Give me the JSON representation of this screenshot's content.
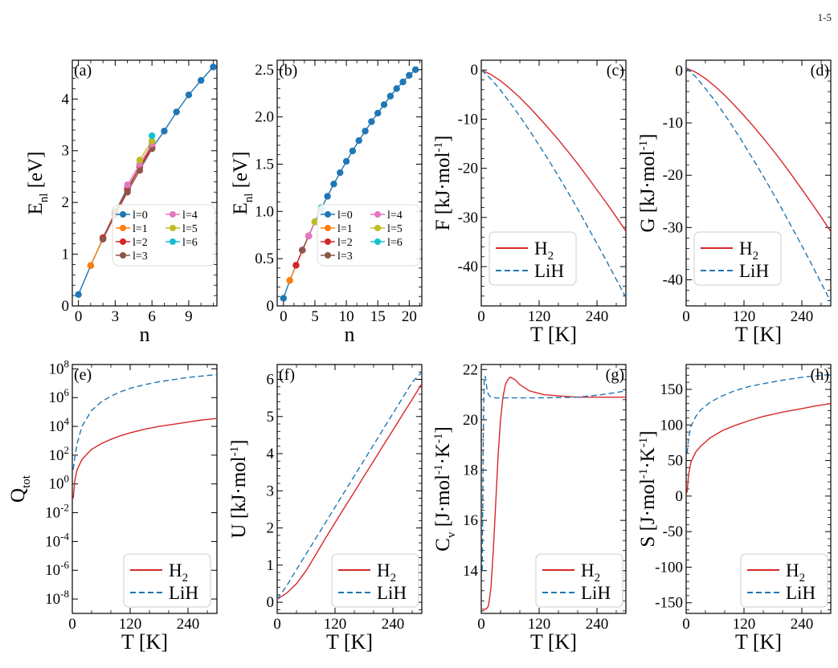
{
  "page_number": "1-5",
  "colors": {
    "H2": "#d62728",
    "LiH": "#1f77b4",
    "l0": "#1f77b4",
    "l1": "#ff7f0e",
    "l2": "#d62728",
    "l3": "#8c564b",
    "l4": "#e377c2",
    "l5": "#bcbd22",
    "l6": "#17becf"
  },
  "chart_data": [
    {
      "id": "a",
      "panel_label": "(a)",
      "type": "line",
      "xlabel": "n",
      "ylabel_main": "E",
      "ylabel_sub": "nl",
      "ylabel_unit": " [eV]",
      "xlim": [
        -0.5,
        11.3
      ],
      "ylim": [
        0,
        4.75
      ],
      "xticks": [
        0,
        3,
        6,
        9
      ],
      "yticks": [
        0,
        1,
        2,
        3,
        4
      ],
      "legend": {
        "position": "lower-right-inside",
        "columns": 2,
        "entries": [
          "l=0",
          "l=1",
          "l=2",
          "l=3",
          "l=4",
          "l=5",
          "l=6"
        ]
      },
      "series": [
        {
          "name": "l=0",
          "x": [
            0,
            1,
            2,
            3,
            4,
            5,
            6,
            7,
            8,
            9,
            10,
            11
          ],
          "y": [
            0.22,
            0.78,
            1.3,
            1.82,
            2.28,
            2.68,
            3.05,
            3.38,
            3.75,
            4.08,
            4.36,
            4.62
          ]
        },
        {
          "name": "l=1",
          "x": [
            1,
            2,
            3,
            4,
            5,
            6
          ],
          "y": [
            0.78,
            1.31,
            1.8,
            2.25,
            2.68,
            3.12
          ]
        },
        {
          "name": "l=2",
          "x": [
            2,
            3,
            4,
            5,
            6
          ],
          "y": [
            1.32,
            1.79,
            2.24,
            2.69,
            3.08
          ]
        },
        {
          "name": "l=3",
          "x": [
            2,
            3,
            4,
            5,
            6
          ],
          "y": [
            1.29,
            1.76,
            2.2,
            2.62,
            3.04
          ]
        },
        {
          "name": "l=4",
          "x": [
            4,
            5,
            6
          ],
          "y": [
            2.34,
            2.74,
            3.13
          ]
        },
        {
          "name": "l=5",
          "x": [
            5,
            6
          ],
          "y": [
            2.82,
            3.19
          ]
        },
        {
          "name": "l=6",
          "x": [
            6
          ],
          "y": [
            3.29
          ]
        }
      ]
    },
    {
      "id": "b",
      "panel_label": "(b)",
      "type": "line",
      "xlabel": "n",
      "ylabel_main": "E",
      "ylabel_sub": "nl",
      "ylabel_unit": " [eV]",
      "xlim": [
        -1,
        22
      ],
      "ylim": [
        0,
        2.6
      ],
      "xticks": [
        0,
        5,
        10,
        15,
        20
      ],
      "yticks": [
        0,
        0.5,
        1.0,
        1.5,
        2.0,
        2.5
      ],
      "ytick_labels": [
        "0",
        "0.5",
        "1.0",
        "1.5",
        "2.0",
        "2.5"
      ],
      "legend": {
        "position": "lower-right-inside",
        "columns": 2,
        "entries": [
          "l=0",
          "l=1",
          "l=2",
          "l=3",
          "l=4",
          "l=5",
          "l=6"
        ]
      },
      "series": [
        {
          "name": "l=0",
          "x": [
            0,
            1,
            2,
            3,
            4,
            5,
            6,
            7,
            8,
            9,
            10,
            11,
            12,
            13,
            14,
            15,
            16,
            17,
            18,
            19,
            20,
            21
          ],
          "y": [
            0.08,
            0.27,
            0.43,
            0.59,
            0.74,
            0.89,
            1.03,
            1.16,
            1.29,
            1.41,
            1.53,
            1.64,
            1.75,
            1.85,
            1.95,
            2.04,
            2.13,
            2.22,
            2.3,
            2.37,
            2.44,
            2.5
          ]
        },
        {
          "name": "l=1",
          "x": [
            1,
            2,
            3,
            4,
            5
          ],
          "y": [
            0.27,
            0.43,
            0.59,
            0.74,
            0.89
          ]
        },
        {
          "name": "l=2",
          "x": [
            2,
            3,
            4,
            5
          ],
          "y": [
            0.43,
            0.59,
            0.74,
            0.89
          ]
        },
        {
          "name": "l=3",
          "x": [
            3,
            4,
            5
          ],
          "y": [
            0.59,
            0.74,
            0.89
          ]
        },
        {
          "name": "l=4",
          "x": [
            4,
            5
          ],
          "y": [
            0.74,
            0.89
          ]
        },
        {
          "name": "l=5",
          "x": [
            5
          ],
          "y": [
            0.89
          ]
        },
        {
          "name": "l=6",
          "x": [
            6
          ],
          "y": [
            1.04
          ]
        }
      ]
    },
    {
      "id": "c",
      "panel_label": "(c)",
      "type": "line",
      "xlabel": "T [K]",
      "ylabel_text": "F [kJ·mol",
      "ylabel_sup": "-1",
      "ylabel_end": "]",
      "xlim": [
        0,
        300
      ],
      "ylim": [
        -48,
        2
      ],
      "xticks": [
        0,
        120,
        240
      ],
      "yticks": [
        0,
        -10,
        -20,
        -30,
        -40
      ],
      "legend": {
        "position": "lower-left-inside",
        "entries": [
          "H2",
          "LiH"
        ]
      },
      "x": [
        0,
        20,
        40,
        60,
        80,
        100,
        120,
        140,
        160,
        180,
        200,
        220,
        240,
        260,
        280,
        300
      ],
      "series": [
        {
          "name": "H2",
          "style": "solid",
          "y": [
            0,
            -0.9,
            -2.2,
            -3.8,
            -5.6,
            -7.6,
            -9.7,
            -11.9,
            -14.2,
            -16.6,
            -19.1,
            -21.7,
            -24.4,
            -27.1,
            -29.9,
            -32.8
          ]
        },
        {
          "name": "LiH",
          "style": "dashed",
          "y": [
            0,
            -1.8,
            -4.1,
            -6.7,
            -9.4,
            -12.3,
            -15.3,
            -18.4,
            -21.6,
            -24.9,
            -28.3,
            -31.8,
            -35.3,
            -38.9,
            -42.6,
            -46.3
          ]
        }
      ]
    },
    {
      "id": "d",
      "panel_label": "(d)",
      "type": "line",
      "xlabel": "T [K]",
      "ylabel_text": "G [kJ·mol",
      "ylabel_sup": "-1",
      "ylabel_end": "]",
      "xlim": [
        0,
        300
      ],
      "ylim": [
        -45,
        2
      ],
      "xticks": [
        0,
        120,
        240
      ],
      "yticks": [
        0,
        -10,
        -20,
        -30,
        -40
      ],
      "legend": {
        "position": "lower-left-inside",
        "entries": [
          "H2",
          "LiH"
        ]
      },
      "x": [
        0,
        20,
        40,
        60,
        80,
        100,
        120,
        140,
        160,
        180,
        200,
        220,
        240,
        260,
        280,
        300
      ],
      "series": [
        {
          "name": "H2",
          "style": "solid",
          "y": [
            0.5,
            -0.3,
            -1.5,
            -3.0,
            -4.7,
            -6.6,
            -8.6,
            -10.7,
            -12.9,
            -15.2,
            -17.6,
            -20.1,
            -22.7,
            -25.3,
            -28.0,
            -30.8
          ]
        },
        {
          "name": "LiH",
          "style": "dashed",
          "y": [
            0.5,
            -1.2,
            -3.4,
            -5.8,
            -8.4,
            -11.2,
            -14.1,
            -17.1,
            -20.2,
            -23.4,
            -26.7,
            -30.1,
            -33.5,
            -37.0,
            -40.6,
            -44.2
          ]
        }
      ]
    },
    {
      "id": "e",
      "panel_label": "(e)",
      "type": "line",
      "yscale": "log",
      "xlabel": "T [K]",
      "ylabel_main": "Q",
      "ylabel_sub": "tot",
      "xlim": [
        0,
        300
      ],
      "ylim_exp": [
        -9,
        8.3
      ],
      "xticks": [
        0,
        120,
        240
      ],
      "yticks_exp": [
        -8,
        -6,
        -4,
        -2,
        0,
        2,
        4,
        6,
        8
      ],
      "legend": {
        "position": "lower-right-inside",
        "entries": [
          "H2",
          "LiH"
        ]
      },
      "x": [
        2,
        5,
        10,
        20,
        40,
        60,
        80,
        100,
        120,
        150,
        180,
        210,
        240,
        270,
        300
      ],
      "series": [
        {
          "name": "H2",
          "style": "solid",
          "log10_y": [
            -1.0,
            0.2,
            1.0,
            1.7,
            2.4,
            2.8,
            3.1,
            3.35,
            3.55,
            3.8,
            4.0,
            4.15,
            4.3,
            4.45,
            4.55
          ]
        },
        {
          "name": "LiH",
          "style": "dashed",
          "log10_y": [
            1.0,
            1.8,
            2.8,
            4.0,
            5.1,
            5.7,
            6.1,
            6.4,
            6.65,
            6.9,
            7.1,
            7.25,
            7.4,
            7.5,
            7.6
          ]
        }
      ]
    },
    {
      "id": "f",
      "panel_label": "(f)",
      "type": "line",
      "xlabel": "T [K]",
      "ylabel_text": "U [kJ·mol",
      "ylabel_sup": "-1",
      "ylabel_end": "]",
      "xlim": [
        0,
        300
      ],
      "ylim": [
        -0.3,
        6.4
      ],
      "xticks": [
        0,
        120,
        240
      ],
      "yticks": [
        0,
        1,
        2,
        3,
        4,
        5,
        6
      ],
      "legend": {
        "position": "lower-right-inside",
        "entries": [
          "H2",
          "LiH"
        ]
      },
      "x": [
        0,
        20,
        40,
        60,
        80,
        100,
        120,
        140,
        160,
        180,
        200,
        220,
        240,
        260,
        280,
        300
      ],
      "series": [
        {
          "name": "H2",
          "style": "solid",
          "y": [
            0.08,
            0.25,
            0.5,
            0.85,
            1.28,
            1.72,
            2.14,
            2.56,
            2.97,
            3.39,
            3.8,
            4.22,
            4.63,
            5.05,
            5.46,
            5.88
          ]
        },
        {
          "name": "LiH",
          "style": "dashed",
          "y": [
            0.08,
            0.45,
            0.88,
            1.3,
            1.72,
            2.14,
            2.56,
            2.98,
            3.4,
            3.82,
            4.24,
            4.66,
            5.08,
            5.5,
            5.92,
            6.2
          ]
        }
      ]
    },
    {
      "id": "g",
      "panel_label": "(g)",
      "type": "line",
      "xlabel": "T [K]",
      "ylabel_main": "C",
      "ylabel_sub": "v",
      "ylabel_text": " [J·mol",
      "ylabel_sup": "-1",
      "ylabel_mid": "·K",
      "ylabel_sup2": "-1",
      "ylabel_end": "]",
      "xlim": [
        0,
        300
      ],
      "ylim": [
        12.3,
        22.2
      ],
      "xticks": [
        0,
        120,
        240
      ],
      "yticks": [
        14,
        16,
        18,
        20,
        22
      ],
      "legend": {
        "position": "lower-right-inside",
        "entries": [
          "H2",
          "LiH"
        ]
      },
      "series": [
        {
          "name": "H2",
          "style": "solid",
          "x": [
            2,
            5,
            10,
            15,
            20,
            25,
            30,
            35,
            40,
            45,
            50,
            55,
            60,
            70,
            80,
            100,
            130,
            160,
            200,
            240,
            280,
            300
          ],
          "y": [
            12.47,
            12.47,
            12.47,
            12.6,
            13.3,
            14.8,
            16.7,
            18.6,
            20.0,
            20.9,
            21.4,
            21.6,
            21.7,
            21.6,
            21.4,
            21.15,
            21.0,
            20.95,
            20.9,
            20.9,
            20.9,
            20.9
          ]
        },
        {
          "name": "LiH",
          "style": "dashed",
          "x": [
            2,
            4,
            6,
            8,
            10,
            12,
            15,
            20,
            30,
            50,
            100,
            150,
            200,
            250,
            300
          ],
          "y": [
            14.0,
            19.0,
            21.5,
            21.75,
            21.5,
            21.2,
            21.0,
            20.9,
            20.87,
            20.87,
            20.87,
            20.88,
            20.9,
            21.0,
            21.15
          ]
        }
      ]
    },
    {
      "id": "h",
      "panel_label": "(h)",
      "type": "line",
      "xlabel": "T [K]",
      "ylabel_text": "S [J·mol",
      "ylabel_sup": "-1",
      "ylabel_mid": "·K",
      "ylabel_sup2": "-1",
      "ylabel_end": "]",
      "xlim": [
        0,
        300
      ],
      "ylim": [
        -165,
        185
      ],
      "xticks": [
        0,
        120,
        240
      ],
      "yticks": [
        150,
        100,
        50,
        0,
        -50,
        -100,
        -150
      ],
      "legend": {
        "position": "lower-right-inside",
        "entries": [
          "H2",
          "LiH"
        ]
      },
      "x": [
        2,
        5,
        10,
        20,
        30,
        50,
        75,
        100,
        130,
        160,
        200,
        240,
        270,
        300
      ],
      "series": [
        {
          "name": "H2",
          "style": "solid",
          "y": [
            5,
            30,
            48,
            62,
            70,
            82,
            92,
            99,
            106,
            112,
            118,
            123,
            127,
            130
          ]
        },
        {
          "name": "LiH",
          "style": "dashed",
          "y": [
            60,
            82,
            98,
            112,
            121,
            132,
            141,
            148,
            154,
            158,
            163,
            167,
            169,
            171
          ]
        }
      ]
    }
  ]
}
